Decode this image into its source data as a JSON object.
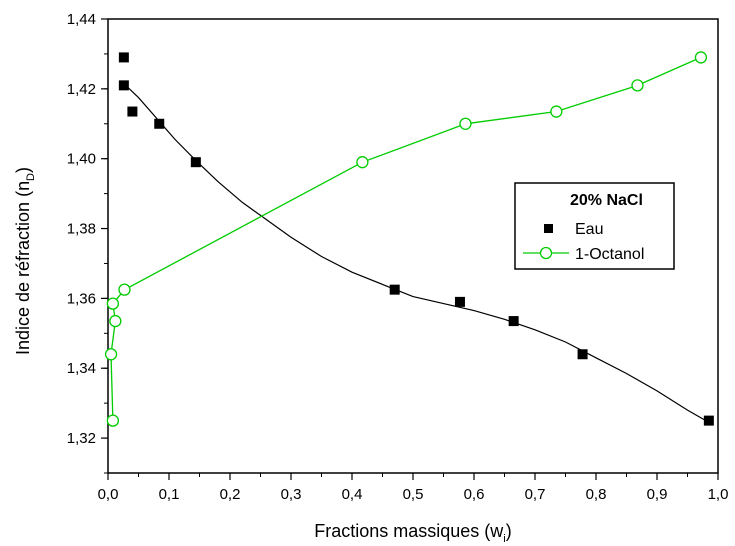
{
  "chart_data": {
    "type": "scatter",
    "xlabel": "Fractions massiques (w",
    "xlabel_sub": "i",
    "xlabel_end": ")",
    "ylabel": "Indice de réfraction (n",
    "ylabel_sub": "D",
    "ylabel_end": ")",
    "xlim": [
      0.0,
      1.0
    ],
    "ylim": [
      1.31,
      1.44
    ],
    "x_ticks": [
      0.0,
      0.1,
      0.2,
      0.3,
      0.4,
      0.5,
      0.6,
      0.7,
      0.8,
      0.9,
      1.0
    ],
    "x_tick_labels": [
      "0,0",
      "0,1",
      "0,2",
      "0,3",
      "0,4",
      "0,5",
      "0,6",
      "0,7",
      "0,8",
      "0,9",
      "1,0"
    ],
    "y_ticks": [
      1.32,
      1.34,
      1.36,
      1.38,
      1.4,
      1.42,
      1.44
    ],
    "y_tick_labels": [
      "1,32",
      "1,34",
      "1,36",
      "1,38",
      "1,40",
      "1,42",
      "1,44"
    ],
    "grid": false,
    "legend": {
      "title": "20% NaCl",
      "placement": "right",
      "entries": [
        "Eau",
        "1-Octanol"
      ]
    },
    "series": [
      {
        "name": "Eau",
        "marker": "filled-square",
        "color": "#000000",
        "points": [
          [
            0.026,
            1.429
          ],
          [
            0.026,
            1.421
          ],
          [
            0.04,
            1.4135
          ],
          [
            0.084,
            1.41
          ],
          [
            0.144,
            1.399
          ],
          [
            0.47,
            1.3625
          ],
          [
            0.577,
            1.359
          ],
          [
            0.665,
            1.3535
          ],
          [
            0.778,
            1.344
          ],
          [
            0.985,
            1.325
          ]
        ],
        "fit_curve": [
          [
            0.026,
            1.4215
          ],
          [
            0.05,
            1.4175
          ],
          [
            0.08,
            1.4115
          ],
          [
            0.11,
            1.4055
          ],
          [
            0.144,
            1.3995
          ],
          [
            0.18,
            1.3935
          ],
          [
            0.22,
            1.3875
          ],
          [
            0.26,
            1.3825
          ],
          [
            0.3,
            1.3775
          ],
          [
            0.35,
            1.372
          ],
          [
            0.4,
            1.3675
          ],
          [
            0.45,
            1.364
          ],
          [
            0.5,
            1.3605
          ],
          [
            0.55,
            1.3585
          ],
          [
            0.6,
            1.3565
          ],
          [
            0.65,
            1.354
          ],
          [
            0.7,
            1.351
          ],
          [
            0.75,
            1.3475
          ],
          [
            0.8,
            1.343
          ],
          [
            0.85,
            1.3385
          ],
          [
            0.9,
            1.3335
          ],
          [
            0.95,
            1.328
          ],
          [
            0.985,
            1.3245
          ]
        ]
      },
      {
        "name": "1-Octanol",
        "marker": "open-circle",
        "color": "#00cc00",
        "points": [
          [
            0.008,
            1.325
          ],
          [
            0.005,
            1.344
          ],
          [
            0.012,
            1.3535
          ],
          [
            0.008,
            1.3585
          ],
          [
            0.027,
            1.3625
          ],
          [
            0.417,
            1.399
          ],
          [
            0.586,
            1.41
          ],
          [
            0.735,
            1.4135
          ],
          [
            0.868,
            1.421
          ],
          [
            0.972,
            1.429
          ]
        ]
      }
    ]
  }
}
